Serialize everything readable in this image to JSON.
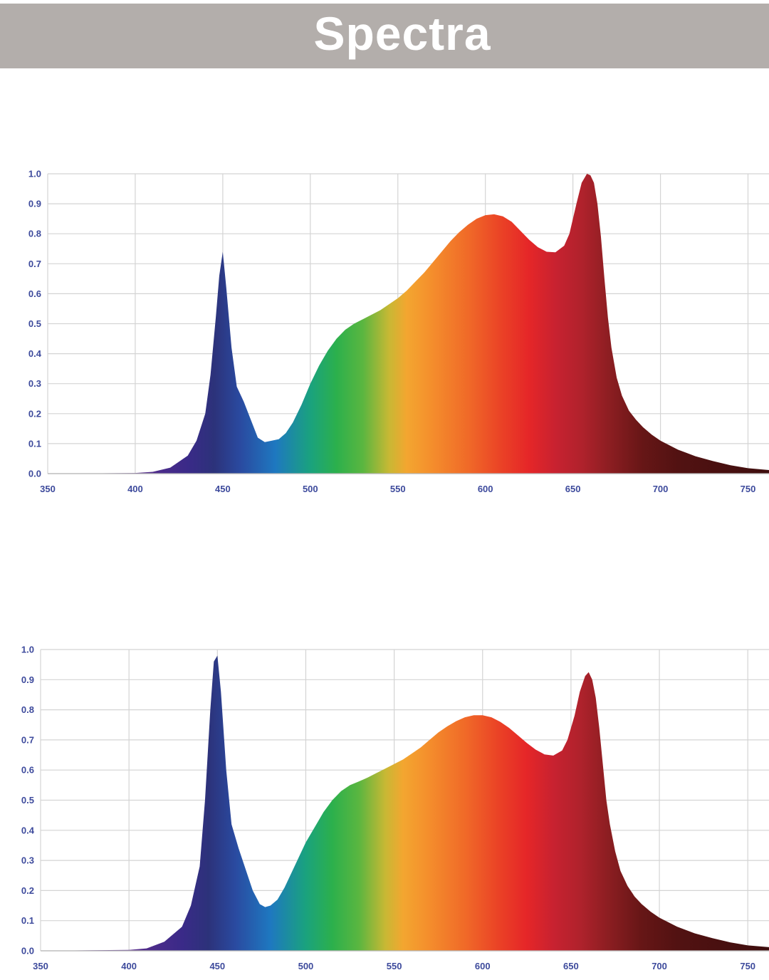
{
  "header": {
    "title": "Spectra"
  },
  "colors": {
    "banner_bg": "#b3aeab",
    "banner_text": "#ffffff",
    "tick_label": "#3d4a9c",
    "grid": "#d4d4d4"
  },
  "chart_data": [
    {
      "type": "area",
      "title": "",
      "xlabel": "",
      "ylabel": "",
      "xlim": [
        350,
        762
      ],
      "ylim": [
        0,
        1.0
      ],
      "x_ticks": [
        "350",
        "400",
        "450",
        "500",
        "550",
        "600",
        "650",
        "700",
        "750"
      ],
      "y_ticks": [
        "0.0",
        "0.1",
        "0.2",
        "0.3",
        "0.4",
        "0.5",
        "0.6",
        "0.7",
        "0.8",
        "0.9",
        "1.0"
      ],
      "grid": true,
      "fill": "visible-spectrum gradient",
      "series": [
        {
          "x": [
            350,
            400,
            410,
            420,
            430,
            435,
            440,
            443,
            446,
            448,
            450,
            452,
            455,
            458,
            462,
            466,
            470,
            474,
            478,
            482,
            486,
            490,
            495,
            500,
            505,
            510,
            515,
            520,
            525,
            530,
            535,
            540,
            545,
            550,
            555,
            560,
            565,
            570,
            575,
            580,
            585,
            590,
            595,
            600,
            605,
            610,
            615,
            620,
            625,
            630,
            635,
            640,
            645,
            648,
            652,
            655,
            658,
            660,
            662,
            664,
            666,
            668,
            670,
            672,
            675,
            678,
            682,
            686,
            690,
            695,
            700,
            710,
            720,
            730,
            740,
            750,
            762
          ],
          "y": [
            0.0,
            0.002,
            0.006,
            0.02,
            0.06,
            0.11,
            0.2,
            0.33,
            0.52,
            0.66,
            0.74,
            0.62,
            0.42,
            0.29,
            0.24,
            0.18,
            0.12,
            0.105,
            0.11,
            0.115,
            0.135,
            0.17,
            0.23,
            0.3,
            0.36,
            0.41,
            0.45,
            0.48,
            0.5,
            0.515,
            0.53,
            0.545,
            0.565,
            0.585,
            0.61,
            0.64,
            0.67,
            0.705,
            0.74,
            0.775,
            0.805,
            0.83,
            0.85,
            0.862,
            0.865,
            0.858,
            0.84,
            0.81,
            0.78,
            0.755,
            0.74,
            0.738,
            0.76,
            0.8,
            0.9,
            0.97,
            1.0,
            0.995,
            0.97,
            0.9,
            0.79,
            0.65,
            0.52,
            0.42,
            0.32,
            0.26,
            0.21,
            0.18,
            0.155,
            0.13,
            0.11,
            0.08,
            0.058,
            0.042,
            0.028,
            0.018,
            0.012
          ]
        }
      ]
    },
    {
      "type": "area",
      "title": "",
      "xlabel": "",
      "ylabel": "",
      "xlim": [
        350,
        762
      ],
      "ylim": [
        0,
        1.0
      ],
      "x_ticks": [
        "350",
        "400",
        "450",
        "500",
        "550",
        "600",
        "650",
        "700",
        "750"
      ],
      "y_ticks": [
        "0.0",
        "0.1",
        "0.2",
        "0.3",
        "0.4",
        "0.5",
        "0.6",
        "0.7",
        "0.8",
        "0.9",
        "1.0"
      ],
      "grid": true,
      "fill": "visible-spectrum gradient",
      "series": [
        {
          "x": [
            350,
            400,
            410,
            420,
            430,
            435,
            440,
            443,
            446,
            448,
            450,
            452,
            455,
            458,
            462,
            466,
            470,
            474,
            477,
            480,
            484,
            488,
            492,
            496,
            500,
            505,
            510,
            515,
            520,
            525,
            530,
            535,
            540,
            545,
            550,
            555,
            560,
            565,
            570,
            575,
            580,
            585,
            590,
            595,
            600,
            605,
            610,
            615,
            620,
            625,
            630,
            635,
            640,
            645,
            648,
            652,
            655,
            658,
            660,
            662,
            664,
            666,
            668,
            670,
            672,
            675,
            678,
            682,
            686,
            690,
            695,
            700,
            710,
            720,
            730,
            740,
            750,
            762
          ],
          "y": [
            0.0,
            0.003,
            0.008,
            0.03,
            0.08,
            0.15,
            0.28,
            0.5,
            0.8,
            0.96,
            0.98,
            0.86,
            0.6,
            0.42,
            0.34,
            0.27,
            0.2,
            0.155,
            0.145,
            0.15,
            0.17,
            0.21,
            0.26,
            0.31,
            0.36,
            0.41,
            0.46,
            0.5,
            0.53,
            0.55,
            0.562,
            0.575,
            0.59,
            0.605,
            0.62,
            0.635,
            0.655,
            0.675,
            0.7,
            0.725,
            0.745,
            0.762,
            0.775,
            0.782,
            0.782,
            0.775,
            0.76,
            0.74,
            0.715,
            0.69,
            0.668,
            0.652,
            0.648,
            0.665,
            0.7,
            0.78,
            0.86,
            0.912,
            0.925,
            0.9,
            0.84,
            0.74,
            0.62,
            0.5,
            0.42,
            0.33,
            0.265,
            0.215,
            0.18,
            0.155,
            0.13,
            0.11,
            0.08,
            0.058,
            0.042,
            0.028,
            0.018,
            0.012
          ]
        }
      ]
    }
  ]
}
